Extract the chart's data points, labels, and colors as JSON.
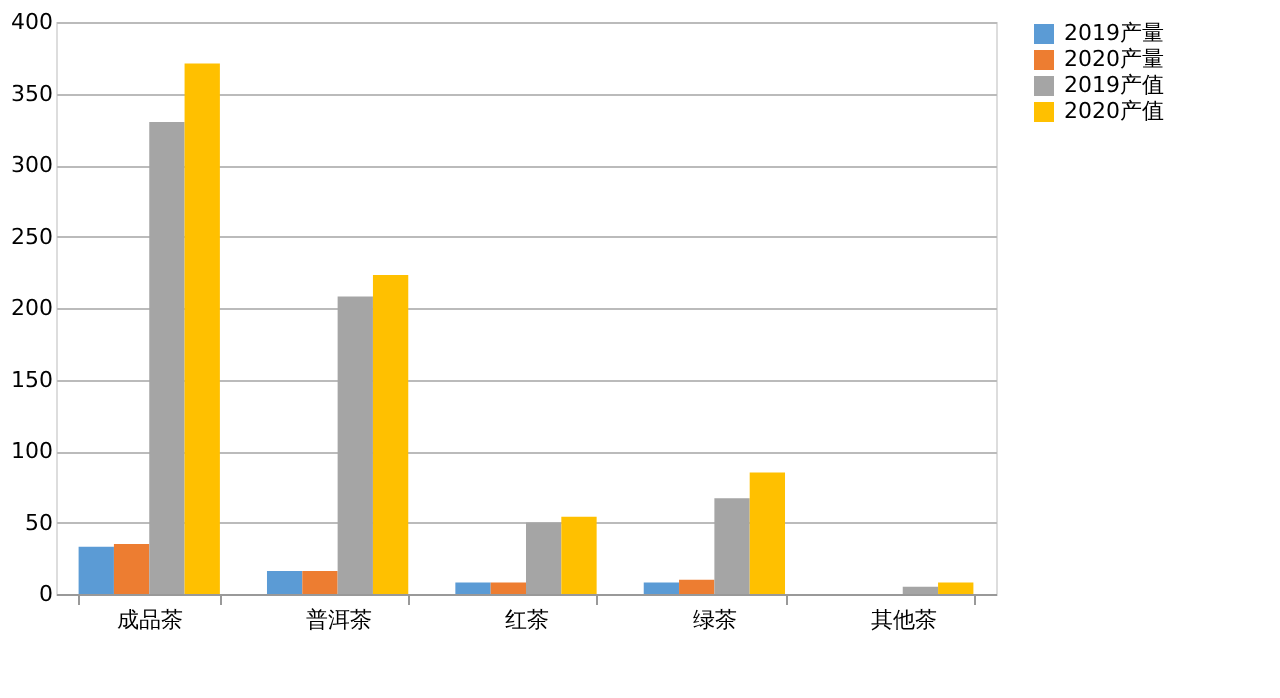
{
  "chart_data": {
    "type": "bar",
    "categories": [
      "成品茶",
      "普洱茶",
      "红茶",
      "绿茶",
      "其他茶"
    ],
    "series": [
      {
        "name": "2019产量",
        "color": "#5b9bd5",
        "values": [
          33,
          16,
          8,
          8,
          0
        ]
      },
      {
        "name": "2020产量",
        "color": "#ed7d31",
        "values": [
          35,
          16,
          8,
          10,
          0
        ]
      },
      {
        "name": "2019产值",
        "color": "#a5a5a5",
        "values": [
          330,
          208,
          50,
          67,
          5
        ]
      },
      {
        "name": "2020产值",
        "color": "#ffc000",
        "values": [
          371,
          223,
          54,
          85,
          8
        ]
      }
    ],
    "ylim": [
      0,
      400
    ],
    "yticks": [
      0,
      50,
      100,
      150,
      200,
      250,
      300,
      350,
      400
    ],
    "grid": "y",
    "legend": "right"
  }
}
